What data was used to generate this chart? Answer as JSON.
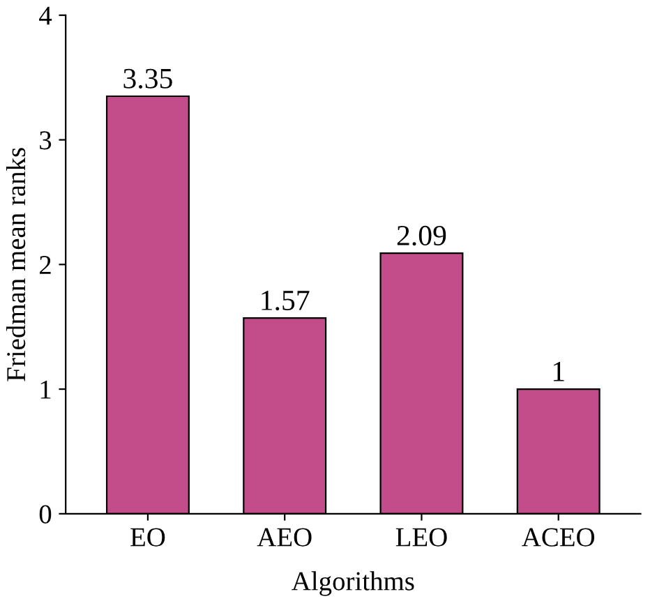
{
  "chart_data": {
    "type": "bar",
    "xlabel": "Algorithms",
    "ylabel": "Friedman mean ranks",
    "categories": [
      "EO",
      "AEO",
      "LEO",
      "ACEO"
    ],
    "values": [
      3.35,
      1.57,
      2.09,
      1
    ],
    "value_labels": [
      "3.35",
      "1.57",
      "2.09",
      "1"
    ],
    "color": "#c24d8a",
    "ylim": [
      0,
      4
    ],
    "yticks": [
      0,
      1,
      2,
      3,
      4
    ],
    "grid": false
  }
}
